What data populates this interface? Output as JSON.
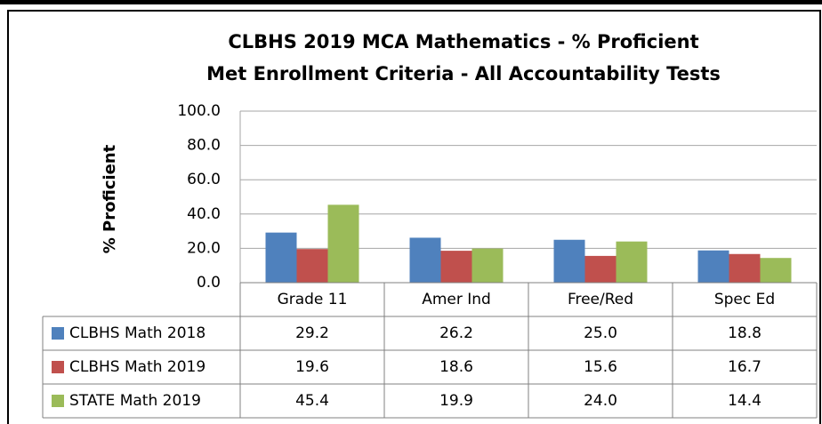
{
  "chart_data": {
    "type": "bar",
    "title": "CLBHS 2019 MCA Mathematics - % Proficient",
    "subtitle": "Met Enrollment Criteria - All Accountability Tests",
    "y_label": "% Proficient",
    "categories": [
      "Grade 11",
      "Amer Ind",
      "Free/Red",
      "Spec Ed"
    ],
    "series": [
      {
        "name": "CLBHS Math 2018",
        "color": "#4f81bd",
        "values": [
          29.2,
          26.2,
          25.0,
          18.8
        ],
        "value_labels": [
          "29.2",
          "26.2",
          "25.0",
          "18.8"
        ]
      },
      {
        "name": "CLBHS Math 2019",
        "color": "#c0504d",
        "values": [
          19.6,
          18.6,
          15.6,
          16.7
        ],
        "value_labels": [
          "19.6",
          "18.6",
          "15.6",
          "16.7"
        ]
      },
      {
        "name": "STATE Math 2019",
        "color": "#9bbb59",
        "values": [
          45.4,
          19.9,
          24.0,
          14.4
        ],
        "value_labels": [
          "45.4",
          "19.9",
          "24.0",
          "14.4"
        ]
      }
    ],
    "ylim": [
      0,
      100
    ],
    "yticks": [
      {
        "value": 0,
        "label": "0.0"
      },
      {
        "value": 20,
        "label": "20.0"
      },
      {
        "value": 40,
        "label": "40.0"
      },
      {
        "value": 60,
        "label": "60.0"
      },
      {
        "value": 80,
        "label": "80.0"
      },
      {
        "value": 100,
        "label": "100.0"
      }
    ],
    "grid": true
  }
}
